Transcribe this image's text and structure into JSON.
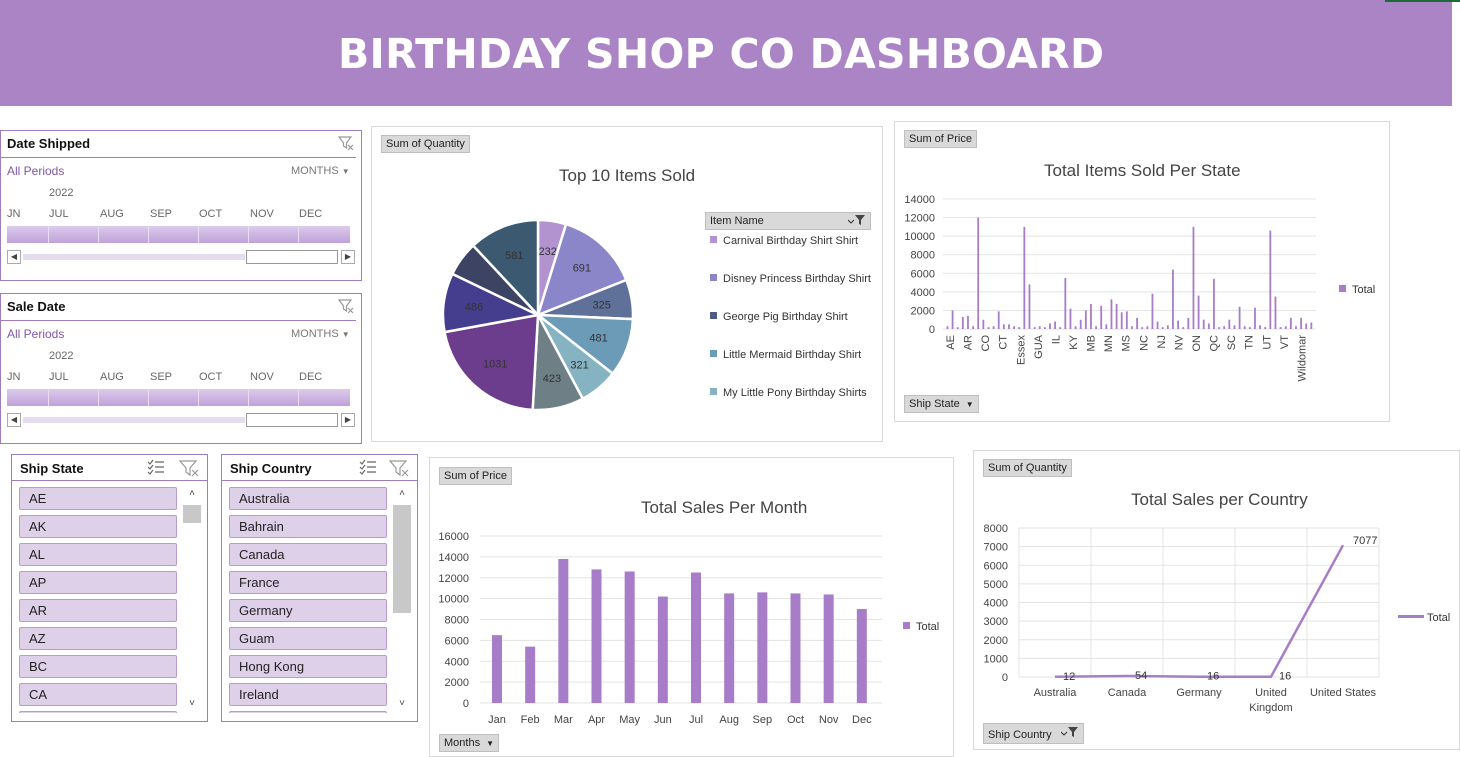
{
  "header": {
    "title": "BIRTHDAY SHOP CO DASHBOARD"
  },
  "colors": {
    "banner": "#ab84c6",
    "accent": "#7f57a8",
    "bar": "#a77cc8",
    "slicer_item": "#dfd0ea"
  },
  "timelines": [
    {
      "title": "Date Shipped",
      "periods": "All Periods",
      "level": "MONTHS",
      "year": "2022",
      "months": [
        "JN",
        "JUL",
        "AUG",
        "SEP",
        "OCT",
        "NOV",
        "DEC"
      ]
    },
    {
      "title": "Sale Date",
      "periods": "All Periods",
      "level": "MONTHS",
      "year": "2022",
      "months": [
        "JN",
        "JUL",
        "AUG",
        "SEP",
        "OCT",
        "NOV",
        "DEC"
      ]
    }
  ],
  "slicers": {
    "ship_state": {
      "title": "Ship State",
      "items": [
        "AE",
        "AK",
        "AL",
        "AP",
        "AR",
        "AZ",
        "BC",
        "CA"
      ]
    },
    "ship_country": {
      "title": "Ship Country",
      "items": [
        "Australia",
        "Bahrain",
        "Canada",
        "France",
        "Germany",
        "Guam",
        "Hong Kong",
        "Ireland"
      ]
    }
  },
  "pie_panel": {
    "value_pill": "Sum of Quantity",
    "legend_field": "Item Name",
    "chart_data": {
      "type": "pie",
      "title": "Top 10 Items Sold",
      "values": [
        232,
        691,
        325,
        481,
        321,
        423,
        1031,
        486,
        288,
        581
      ],
      "labels": [
        "232",
        "691",
        "325",
        "481",
        "321",
        "423",
        "1031",
        "486",
        "",
        "581"
      ],
      "colors": [
        "#b292cf",
        "#8b85c9",
        "#5f7099",
        "#6c9bb7",
        "#86b3c1",
        "#6f7f86",
        "#6c3d8c",
        "#453d8e",
        "#3d4463",
        "#3b5a72"
      ],
      "legend": [
        "Carnival Birthday Shirt Shirt",
        "Disney Princess Birthday Shirt",
        "George Pig Birthday Shirt",
        "Little Mermaid Birthday Shirt",
        "My Little Pony Birthday Shirts"
      ],
      "legend_colors": [
        "#b292cf",
        "#8b85c9",
        "#4c5c7f",
        "#6c9bb7",
        "#86b3c1"
      ]
    }
  },
  "state_panel": {
    "value_pill": "Sum of Price",
    "axis_pill": "Ship State",
    "chart_data": {
      "type": "bar",
      "title": "Total Items Sold Per State",
      "ylim": [
        0,
        14000
      ],
      "yticks": [
        "14000",
        "12000",
        "10000",
        "8000",
        "6000",
        "4000",
        "2000",
        "0"
      ],
      "tick_labels": [
        "AE",
        "AR",
        "CO",
        "CT",
        "Essex",
        "GUA",
        "IL",
        "KY",
        "MB",
        "MN",
        "MS",
        "NC",
        "NJ",
        "NV",
        "ON",
        "QC",
        "SC",
        "TN",
        "UT",
        "VT",
        "Wildomar"
      ],
      "series": [
        {
          "name": "Total",
          "values": [
            300,
            2000,
            200,
            1300,
            1400,
            300,
            12000,
            1000,
            200,
            300,
            1900,
            500,
            500,
            300,
            200,
            11000,
            4800,
            200,
            300,
            200,
            600,
            800,
            200,
            5500,
            2200,
            300,
            1000,
            2000,
            2700,
            300,
            2500,
            500,
            3200,
            2700,
            1800,
            1900,
            300,
            1200,
            200,
            300,
            3800,
            800,
            200,
            400,
            6400,
            900,
            200,
            1200,
            11000,
            3600,
            1000,
            600,
            5400,
            200,
            300,
            1000,
            400,
            2400,
            300,
            200,
            2300,
            400,
            200,
            10600,
            3500,
            200,
            300,
            1200,
            300,
            1200,
            600,
            700
          ]
        }
      ]
    }
  },
  "month_panel": {
    "value_pill": "Sum of Price",
    "axis_pill": "Months",
    "chart_data": {
      "type": "bar",
      "title": "Total Sales Per Month",
      "categories": [
        "Jan",
        "Feb",
        "Mar",
        "Apr",
        "May",
        "Jun",
        "Jul",
        "Aug",
        "Sep",
        "Oct",
        "Nov",
        "Dec"
      ],
      "ylim": [
        0,
        16000
      ],
      "yticks": [
        "16000",
        "14000",
        "12000",
        "10000",
        "8000",
        "6000",
        "4000",
        "2000",
        "0"
      ],
      "series": [
        {
          "name": "Total",
          "values": [
            6500,
            5400,
            13800,
            12800,
            12600,
            10200,
            12500,
            10500,
            10600,
            10500,
            10400,
            9000
          ]
        }
      ]
    }
  },
  "country_panel": {
    "value_pill": "Sum of Quantity",
    "axis_pill": "Ship Country",
    "chart_data": {
      "type": "line",
      "title": "Total Sales per Country",
      "categories": [
        "Australia",
        "Canada",
        "Germany",
        "United Kingdom",
        "United States"
      ],
      "category_lines": [
        [
          "Australia"
        ],
        [
          "Canada"
        ],
        [
          "Germany"
        ],
        [
          "United",
          "Kingdom"
        ],
        [
          "United States"
        ]
      ],
      "ylim": [
        0,
        8000
      ],
      "yticks": [
        "8000",
        "7000",
        "6000",
        "5000",
        "4000",
        "3000",
        "2000",
        "1000",
        "0"
      ],
      "series": [
        {
          "name": "Total",
          "values": [
            12,
            54,
            16,
            16,
            7077
          ]
        }
      ],
      "data_labels": [
        "12",
        "54",
        "16",
        "16",
        "7077"
      ]
    }
  }
}
